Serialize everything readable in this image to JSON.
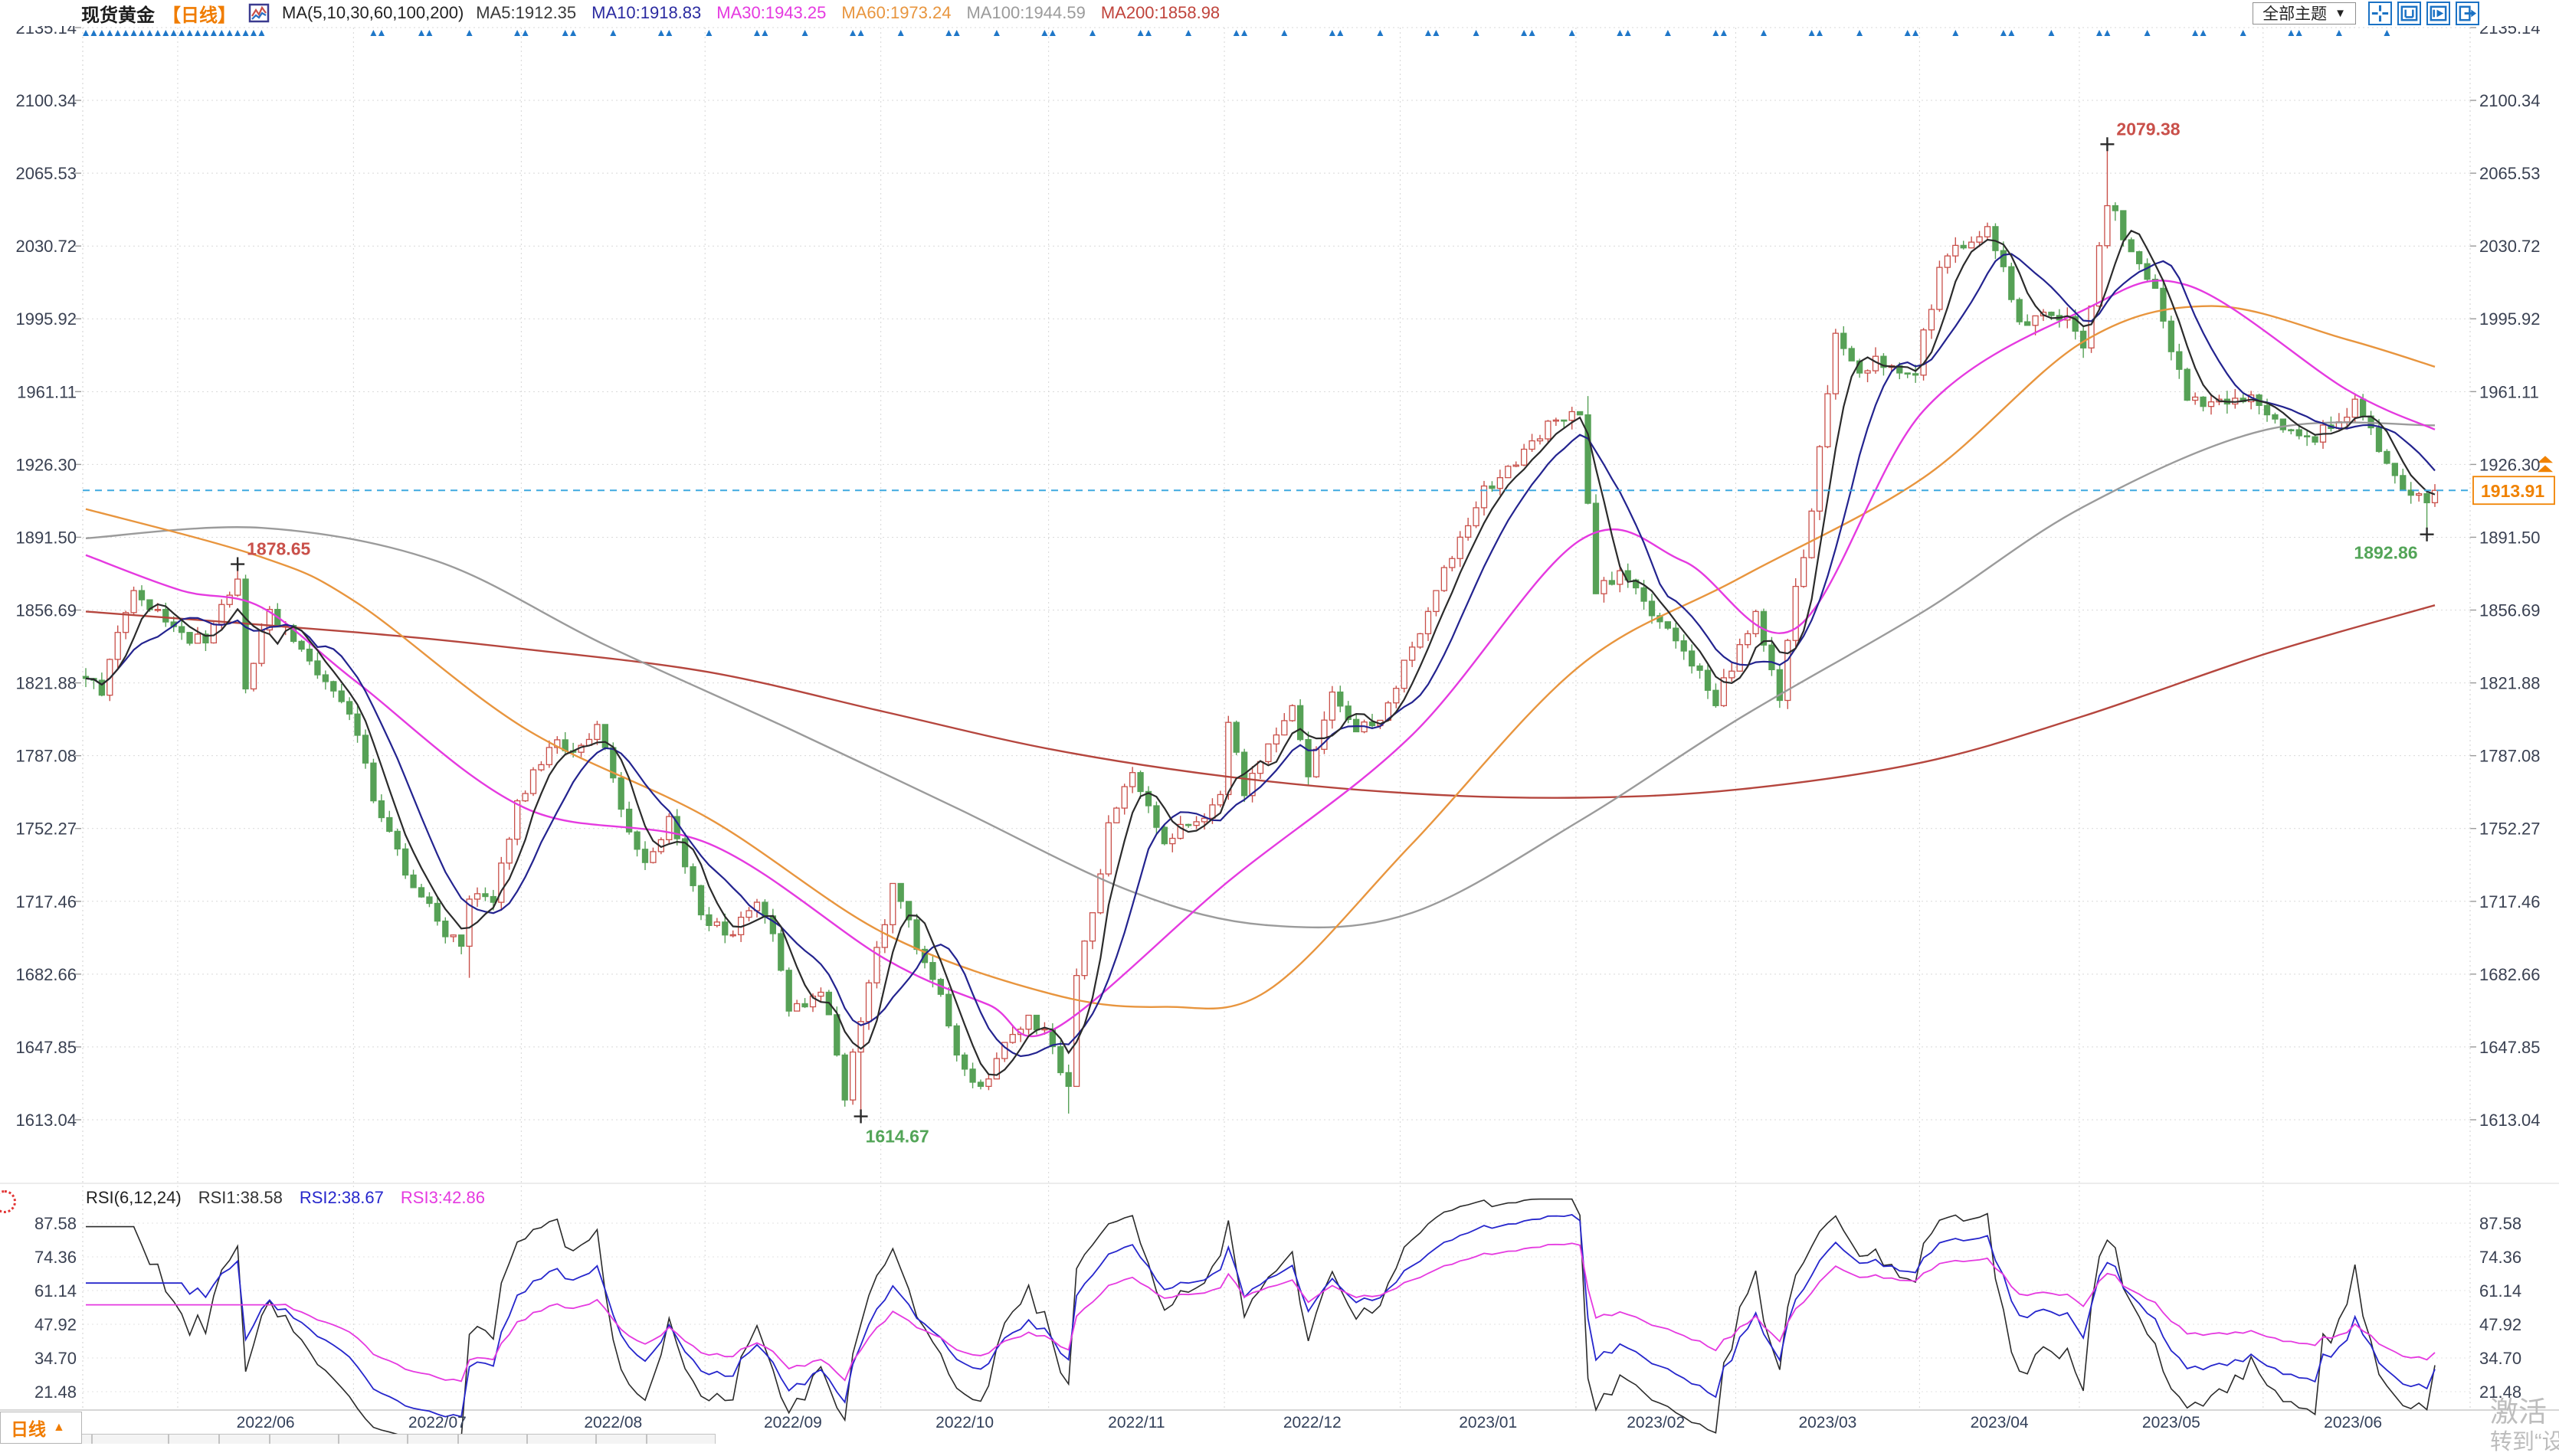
{
  "header": {
    "title": "现货黄金",
    "period_tag": "【日线】",
    "ma_group_label": "MA(5,10,30,60,100,200)",
    "ma_values": [
      {
        "label": "MA5:1912.35",
        "color": "#3a3a3a"
      },
      {
        "label": "MA10:1918.83",
        "color": "#2a2aa0"
      },
      {
        "label": "MA30:1943.25",
        "color": "#e53ae0"
      },
      {
        "label": "MA60:1973.24",
        "color": "#e8953e"
      },
      {
        "label": "MA100:1944.59",
        "color": "#9b9b9b"
      },
      {
        "label": "MA200:1858.98",
        "color": "#c0443c"
      }
    ],
    "theme_dropdown": {
      "label": "全部主题",
      "caret": "▼"
    },
    "toolbar_icons": [
      "crosshair-icon",
      "reset-range-icon",
      "scroll-right-icon",
      "export-right-icon"
    ]
  },
  "rsi_header": {
    "label": "RSI(6,12,24)",
    "values": [
      {
        "label": "RSI1:38.58",
        "color": "#333333"
      },
      {
        "label": "RSI2:38.67",
        "color": "#2626cc"
      },
      {
        "label": "RSI3:42.86",
        "color": "#e53ae0"
      }
    ]
  },
  "period_selector": {
    "label": "日线",
    "caret": "▲"
  },
  "watermark": {
    "line1": "激活",
    "line2": "转到“设"
  },
  "bottom_strip": {
    "tab_count": 12,
    "selected_index": 0
  },
  "chart_data": {
    "type": "candlestick",
    "instrument": "现货黄金",
    "timeframe": "日线",
    "date_range": [
      "2022-05-16",
      "2023-06-30"
    ],
    "last_price": 1913.91,
    "price_ticks": [
      2135.14,
      2100.34,
      2065.53,
      2030.72,
      1995.92,
      1961.11,
      1926.3,
      1891.5,
      1856.69,
      1821.88,
      1787.08,
      1752.27,
      1717.46,
      1682.66,
      1647.85,
      1613.04
    ],
    "x_axis_ticks": [
      "2022/06",
      "2022/07",
      "2022/08",
      "2022/09",
      "2022/10",
      "2022/11",
      "2022/12",
      "2023/01",
      "2023/02",
      "2023/03",
      "2023/04",
      "2023/05",
      "2023/06"
    ],
    "annotations": [
      {
        "text": "1878.65",
        "date": "2022-06-10",
        "price": 1878.65,
        "kind": "high",
        "side": "right-top",
        "color": "#c9504a"
      },
      {
        "text": "1614.67",
        "date": "2022-09-28",
        "price": 1614.67,
        "kind": "low",
        "side": "below-right",
        "color": "#53a558"
      },
      {
        "text": "2079.38",
        "date": "2023-05-04",
        "price": 2079.38,
        "kind": "high",
        "side": "right-top",
        "color": "#c9504a"
      },
      {
        "text": "1892.86",
        "date": "2023-06-29",
        "price": 1892.86,
        "kind": "low",
        "side": "below-left",
        "color": "#53a558"
      }
    ],
    "close_anchors": [
      [
        "2022-05-16",
        1824
      ],
      [
        "2022-05-18",
        1816
      ],
      [
        "2022-05-20",
        1846
      ],
      [
        "2022-05-24",
        1866
      ],
      [
        "2022-05-27",
        1857
      ],
      [
        "2022-06-01",
        1846
      ],
      [
        "2022-06-06",
        1841
      ],
      [
        "2022-06-10",
        1871.5
      ],
      [
        "2022-06-13",
        1819
      ],
      [
        "2022-06-16",
        1857
      ],
      [
        "2022-06-22",
        1838
      ],
      [
        "2022-06-27",
        1822.5
      ],
      [
        "2022-06-30",
        1807
      ],
      [
        "2022-07-05",
        1765.5
      ],
      [
        "2022-07-08",
        1742.5
      ],
      [
        "2022-07-12",
        1724
      ],
      [
        "2022-07-15",
        1708
      ],
      [
        "2022-07-20",
        1696
      ],
      [
        "2022-07-21",
        1718.5
      ],
      [
        "2022-07-26",
        1717
      ],
      [
        "2022-07-29",
        1765.5
      ],
      [
        "2022-08-04",
        1791
      ],
      [
        "2022-08-10",
        1792
      ],
      [
        "2022-08-12",
        1802
      ],
      [
        "2022-08-17",
        1761.5
      ],
      [
        "2022-08-22",
        1736
      ],
      [
        "2022-08-25",
        1758
      ],
      [
        "2022-08-31",
        1711
      ],
      [
        "2022-09-06",
        1701.5
      ],
      [
        "2022-09-09",
        1717
      ],
      [
        "2022-09-13",
        1702
      ],
      [
        "2022-09-15",
        1665
      ],
      [
        "2022-09-21",
        1674
      ],
      [
        "2022-09-23",
        1644
      ],
      [
        "2022-09-26",
        1622.5
      ],
      [
        "2022-09-28",
        1660
      ],
      [
        "2022-10-04",
        1726
      ],
      [
        "2022-10-07",
        1694.5
      ],
      [
        "2022-10-12",
        1673
      ],
      [
        "2022-10-14",
        1644
      ],
      [
        "2022-10-19",
        1629
      ],
      [
        "2022-10-24",
        1650
      ],
      [
        "2022-10-27",
        1663
      ],
      [
        "2022-11-01",
        1648
      ],
      [
        "2022-11-03",
        1629
      ],
      [
        "2022-11-04",
        1682
      ],
      [
        "2022-11-08",
        1712
      ],
      [
        "2022-11-10",
        1755
      ],
      [
        "2022-11-15",
        1779
      ],
      [
        "2022-11-21",
        1745
      ],
      [
        "2022-11-25",
        1755.5
      ],
      [
        "2022-11-30",
        1768.5
      ],
      [
        "2022-12-01",
        1803
      ],
      [
        "2022-12-05",
        1768
      ],
      [
        "2022-12-09",
        1797
      ],
      [
        "2022-12-13",
        1811
      ],
      [
        "2022-12-15",
        1777
      ],
      [
        "2022-12-20",
        1817.5
      ],
      [
        "2022-12-23",
        1798.5
      ],
      [
        "2022-12-28",
        1804
      ],
      [
        "2023-01-03",
        1839
      ],
      [
        "2023-01-06",
        1866
      ],
      [
        "2023-01-12",
        1897
      ],
      [
        "2023-01-16",
        1916
      ],
      [
        "2023-01-20",
        1926
      ],
      [
        "2023-01-26",
        1947
      ],
      [
        "2023-02-01",
        1950
      ],
      [
        "2023-02-03",
        1864.5
      ],
      [
        "2023-02-08",
        1875.5
      ],
      [
        "2023-02-14",
        1854
      ],
      [
        "2023-02-17",
        1842
      ],
      [
        "2023-02-24",
        1811
      ],
      [
        "2023-02-28",
        1827.5
      ],
      [
        "2023-03-03",
        1856
      ],
      [
        "2023-03-08",
        1813.5
      ],
      [
        "2023-03-10",
        1868
      ],
      [
        "2023-03-14",
        1904
      ],
      [
        "2023-03-17",
        1989
      ],
      [
        "2023-03-22",
        1970
      ],
      [
        "2023-03-24",
        1978
      ],
      [
        "2023-03-28",
        1973.5
      ],
      [
        "2023-03-31",
        1969
      ],
      [
        "2023-04-05",
        2020.5
      ],
      [
        "2023-04-13",
        2040
      ],
      [
        "2023-04-19",
        1994.5
      ],
      [
        "2023-04-25",
        1997.5
      ],
      [
        "2023-04-28",
        1990
      ],
      [
        "2023-05-01",
        1982
      ],
      [
        "2023-05-04",
        2050
      ],
      [
        "2023-05-09",
        2028
      ],
      [
        "2023-05-12",
        2010.5
      ],
      [
        "2023-05-18",
        1957
      ],
      [
        "2023-05-24",
        1957.5
      ],
      [
        "2023-05-30",
        1959.5
      ],
      [
        "2023-06-02",
        1948
      ],
      [
        "2023-06-07",
        1940
      ],
      [
        "2023-06-13",
        1943.5
      ],
      [
        "2023-06-16",
        1957.5
      ],
      [
        "2023-06-21",
        1932.5
      ],
      [
        "2023-06-23",
        1921
      ],
      [
        "2023-06-29",
        1908
      ],
      [
        "2023-06-30",
        1913.91
      ]
    ],
    "wick_overrides": {
      "2022-06-10": {
        "high": 1878.65
      },
      "2022-07-21": {
        "low": 1680.9
      },
      "2022-09-28": {
        "low": 1614.67
      },
      "2022-11-03": {
        "low": 1616.0
      },
      "2023-02-02": {
        "high": 1959.0
      },
      "2023-05-04": {
        "high": 2079.38
      },
      "2023-06-29": {
        "low": 1892.86
      }
    },
    "ma_overlays": [
      {
        "name": "MA200",
        "color": "#b5463e",
        "points": [
          [
            "2022-05-16",
            1856
          ],
          [
            "2022-07-01",
            1846
          ],
          [
            "2022-08-01",
            1838
          ],
          [
            "2022-09-01",
            1827
          ],
          [
            "2022-10-03",
            1808
          ],
          [
            "2022-11-01",
            1790
          ],
          [
            "2022-12-01",
            1777
          ],
          [
            "2023-01-03",
            1769
          ],
          [
            "2023-02-01",
            1767
          ],
          [
            "2023-03-01",
            1771
          ],
          [
            "2023-04-03",
            1784
          ],
          [
            "2023-05-01",
            1806
          ],
          [
            "2023-06-01",
            1836
          ],
          [
            "2023-06-30",
            1859
          ]
        ]
      },
      {
        "name": "MA100",
        "color": "#9b9b9b",
        "points": [
          [
            "2022-05-16",
            1891
          ],
          [
            "2022-06-15",
            1896
          ],
          [
            "2022-07-15",
            1880
          ],
          [
            "2022-08-15",
            1840
          ],
          [
            "2022-09-15",
            1800
          ],
          [
            "2022-10-14",
            1762
          ],
          [
            "2022-11-15",
            1722
          ],
          [
            "2022-12-08",
            1706
          ],
          [
            "2023-01-03",
            1712
          ],
          [
            "2023-02-01",
            1756
          ],
          [
            "2023-03-01",
            1805
          ],
          [
            "2023-04-03",
            1856
          ],
          [
            "2023-05-01",
            1906
          ],
          [
            "2023-06-01",
            1943
          ],
          [
            "2023-06-30",
            1945
          ]
        ]
      },
      {
        "name": "MA60",
        "color": "#e8953e",
        "points": [
          [
            "2022-05-16",
            1905
          ],
          [
            "2022-06-15",
            1882
          ],
          [
            "2022-07-01",
            1860
          ],
          [
            "2022-08-01",
            1800
          ],
          [
            "2022-09-01",
            1757
          ],
          [
            "2022-10-03",
            1702
          ],
          [
            "2022-11-01",
            1673
          ],
          [
            "2022-11-21",
            1667
          ],
          [
            "2022-12-08",
            1675
          ],
          [
            "2023-01-03",
            1745
          ],
          [
            "2023-02-01",
            1830
          ],
          [
            "2023-03-01",
            1872
          ],
          [
            "2023-04-03",
            1920
          ],
          [
            "2023-05-01",
            1985
          ],
          [
            "2023-05-23",
            2002
          ],
          [
            "2023-06-15",
            1986
          ],
          [
            "2023-06-30",
            1973
          ]
        ]
      },
      {
        "name": "MA30",
        "color": "#e53ae0",
        "points": [
          [
            "2022-05-16",
            1883
          ],
          [
            "2022-06-01",
            1866
          ],
          [
            "2022-06-15",
            1858
          ],
          [
            "2022-07-01",
            1822
          ],
          [
            "2022-08-01",
            1762
          ],
          [
            "2022-09-01",
            1745
          ],
          [
            "2022-10-03",
            1690
          ],
          [
            "2022-10-20",
            1668
          ],
          [
            "2022-11-01",
            1656
          ],
          [
            "2022-12-01",
            1727
          ],
          [
            "2023-01-03",
            1797
          ],
          [
            "2023-02-01",
            1890
          ],
          [
            "2023-02-20",
            1880
          ],
          [
            "2023-03-10",
            1848
          ],
          [
            "2023-04-03",
            1952
          ],
          [
            "2023-05-01",
            2000
          ],
          [
            "2023-05-18",
            2012
          ],
          [
            "2023-06-15",
            1962
          ],
          [
            "2023-06-30",
            1943
          ]
        ]
      }
    ],
    "computed_overlays": [
      {
        "name": "MA10",
        "period": 10,
        "color": "#23238f"
      },
      {
        "name": "MA5",
        "period": 5,
        "color": "#2b2b2b"
      }
    ],
    "up_color": "#c9504a",
    "down_color": "#56a156",
    "last_price_line_color": "#3fa9e0",
    "accent_orange": "#f08200",
    "rsi": {
      "periods": [
        6,
        12,
        24
      ],
      "colors": [
        "#2b2b2b",
        "#2626cc",
        "#e53ae0"
      ],
      "ticks": [
        87.58,
        74.36,
        61.14,
        47.92,
        34.7,
        21.48
      ]
    },
    "event_marker_color": "#1f77c8",
    "event_marker_indices": [
      0,
      1,
      2,
      3,
      4,
      5,
      6,
      7,
      8,
      9,
      10,
      11,
      12,
      13,
      14,
      15,
      16,
      17,
      18,
      19,
      20,
      21,
      22,
      36,
      37,
      42,
      43,
      48,
      54,
      55,
      60,
      61,
      66,
      72,
      73,
      78,
      84,
      85,
      90,
      96,
      97,
      102,
      108,
      109,
      114,
      120,
      121,
      126,
      132,
      133,
      138,
      144,
      145,
      150,
      156,
      157,
      162,
      168,
      169,
      174,
      180,
      181,
      186,
      192,
      193,
      198,
      204,
      205,
      210,
      216,
      217,
      222,
      228,
      229,
      234,
      240,
      241,
      246,
      252,
      253,
      258,
      264,
      265,
      270,
      276,
      277,
      282,
      288
    ]
  }
}
